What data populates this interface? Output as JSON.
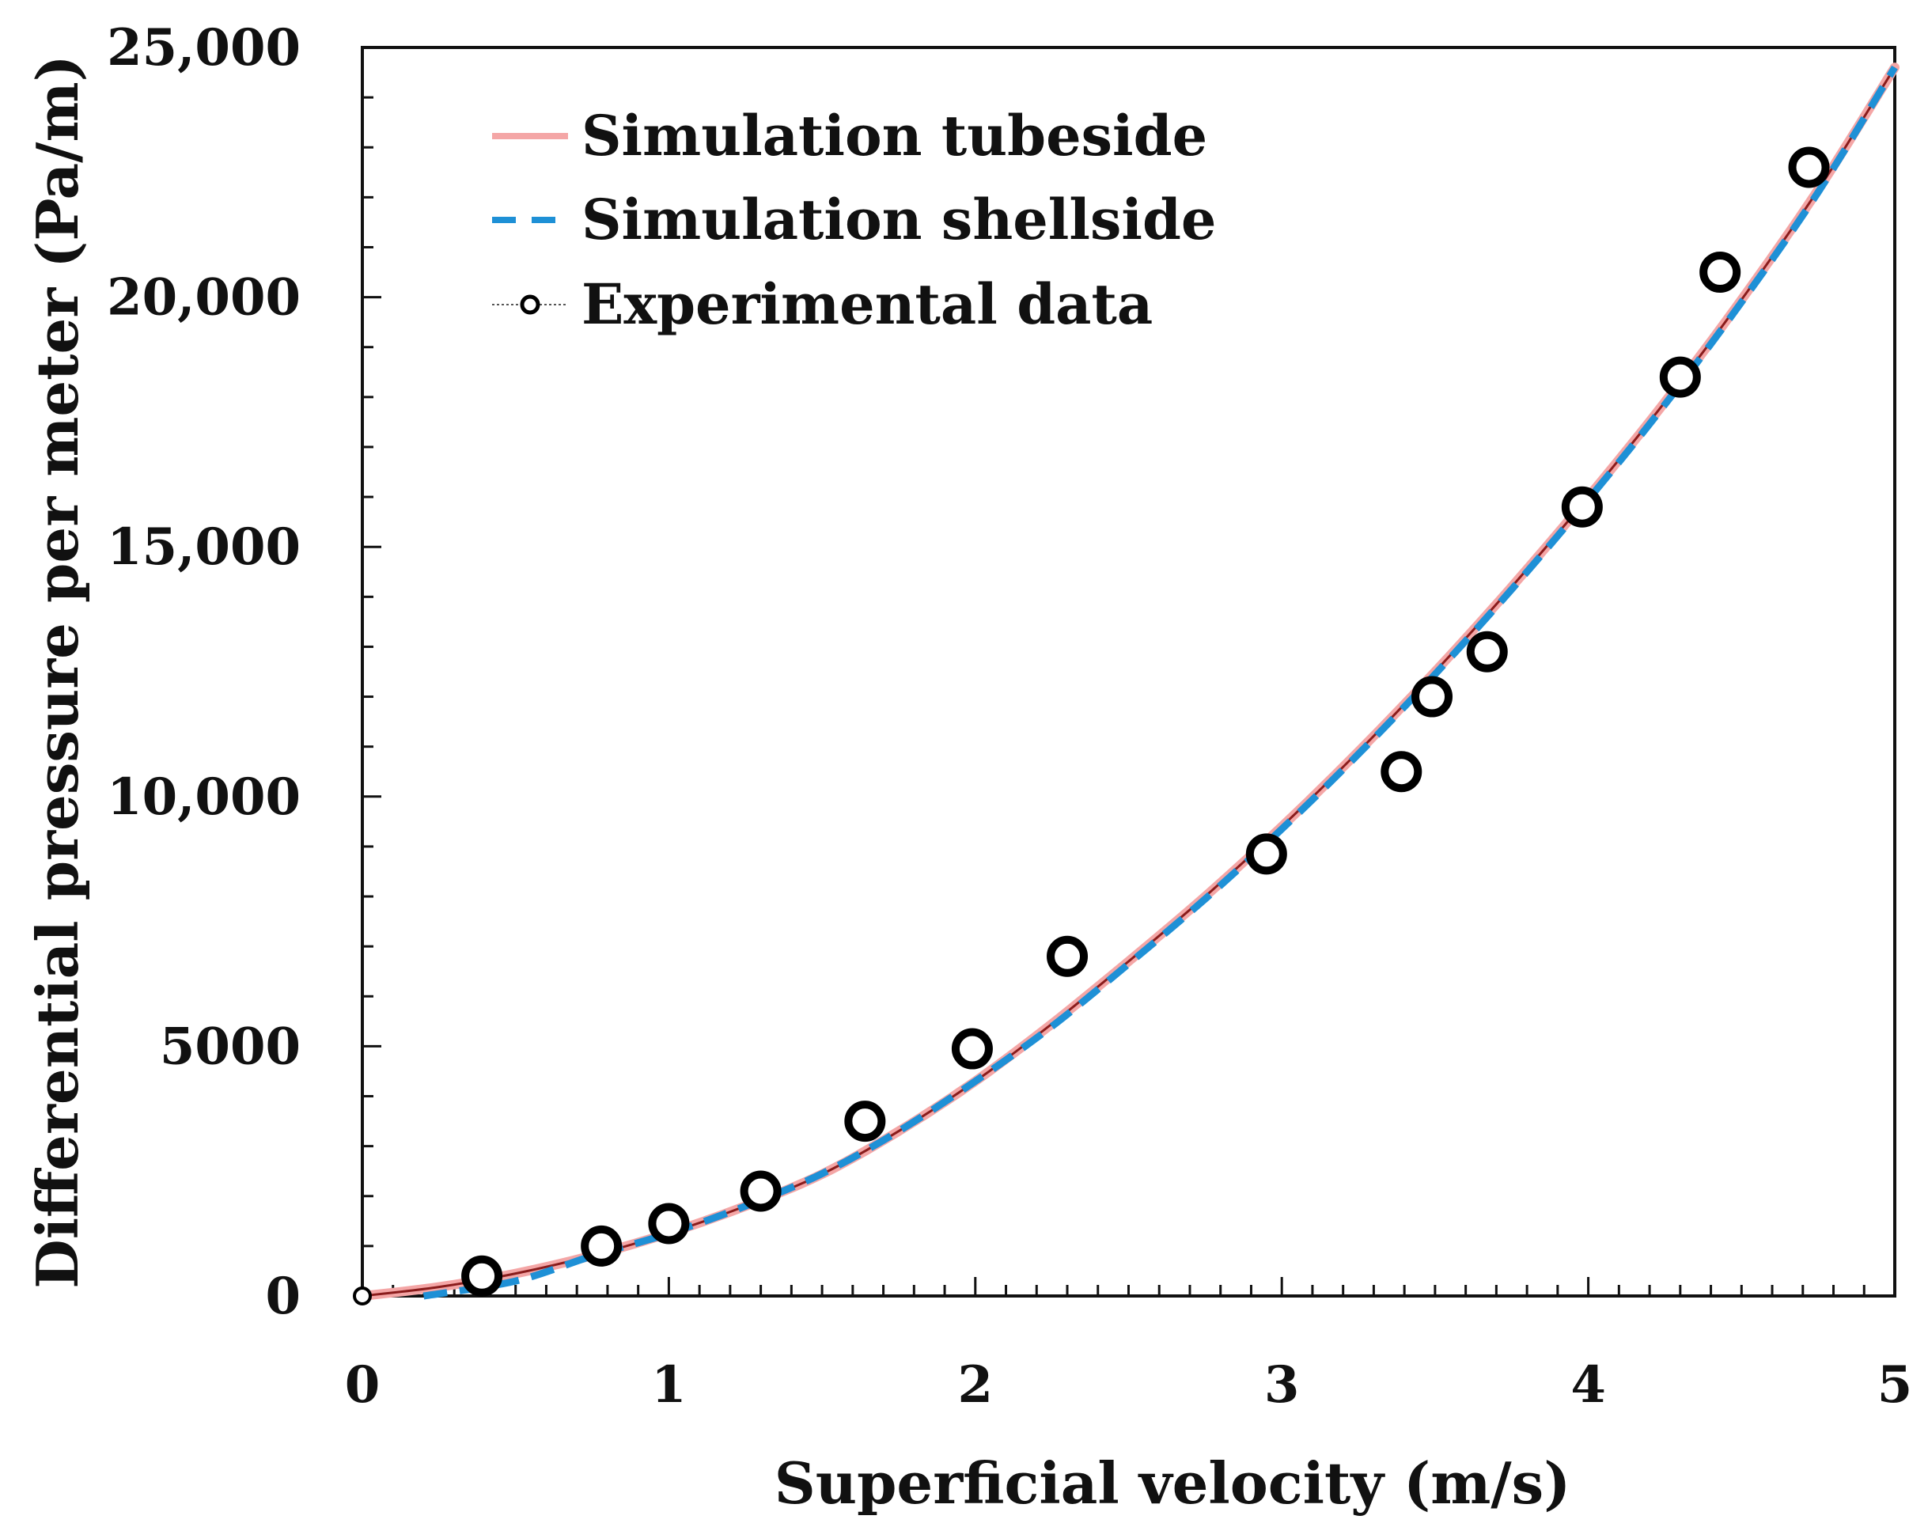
{
  "chart_data": {
    "type": "line",
    "title": "",
    "xlabel": "Superficial velocity (m/s)",
    "ylabel": "Differential pressure per meter (Pa/m)",
    "xlim": [
      0,
      5
    ],
    "ylim": [
      0,
      25000
    ],
    "x_ticks": [
      0,
      1,
      2,
      3,
      4,
      5
    ],
    "x_tick_labels": [
      "0",
      "1",
      "2",
      "3",
      "4",
      "5"
    ],
    "x_minor_step": 0.1,
    "y_ticks": [
      0,
      5000,
      10000,
      15000,
      20000,
      25000
    ],
    "y_tick_labels": [
      "0",
      "5000",
      "10,000",
      "15,000",
      "20,000",
      "25,000"
    ],
    "y_minor_step": 1000,
    "grid": false,
    "legend_position": "top-left",
    "series": [
      {
        "name": "Simulation tubeside",
        "style": "solid",
        "color": "#f4a6a6",
        "x": [
          0,
          0.25,
          0.5,
          0.75,
          1,
          1.25,
          1.5,
          1.75,
          2,
          2.25,
          2.5,
          2.75,
          3,
          3.25,
          3.5,
          3.75,
          4,
          4.25,
          4.5,
          4.75,
          5
        ],
        "y": [
          0,
          180,
          450,
          810,
          1260,
          1800,
          2440,
          3300,
          4300,
          5450,
          6700,
          8000,
          9400,
          10900,
          12500,
          14200,
          16000,
          17900,
          19950,
          22150,
          24600
        ]
      },
      {
        "name": "Simulation shellside",
        "style": "dashed",
        "color": "#1e90d6",
        "x": [
          0.2,
          0.5,
          0.75,
          1,
          1.25,
          1.5,
          1.75,
          2,
          2.25,
          2.5,
          2.75,
          3,
          3.25,
          3.5,
          3.75,
          4,
          4.25,
          4.5,
          4.75,
          5
        ],
        "y": [
          0,
          300,
          800,
          1250,
          1800,
          2450,
          3300,
          4300,
          5400,
          6650,
          7950,
          9350,
          10850,
          12450,
          14150,
          15950,
          17850,
          19900,
          22100,
          24600
        ]
      },
      {
        "name": "Experimental data",
        "style": "markers",
        "color": "#000000",
        "x": [
          0,
          0.39,
          0.78,
          1.0,
          1.3,
          1.64,
          1.99,
          2.3,
          2.95,
          3.39,
          3.49,
          3.67,
          3.98,
          4.3,
          4.43,
          4.72
        ],
        "y": [
          0,
          400,
          1000,
          1450,
          2100,
          3500,
          4950,
          6800,
          8850,
          10500,
          12000,
          12900,
          15800,
          18400,
          20500,
          22600
        ]
      }
    ]
  }
}
